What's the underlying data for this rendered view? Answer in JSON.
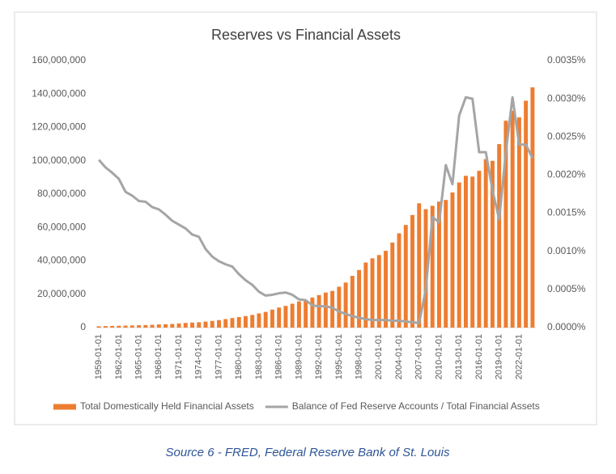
{
  "chart_data": {
    "type": "bar_line",
    "title": "Reserves vs Financial Assets",
    "caption": "Source 6 - FRED, Federal Reserve Bank of St. Louis",
    "categories": [
      "1959-01-01",
      null,
      null,
      "1962-01-01",
      null,
      null,
      "1965-01-01",
      null,
      null,
      "1968-01-01",
      null,
      null,
      "1971-01-01",
      null,
      null,
      "1974-01-01",
      null,
      null,
      "1977-01-01",
      null,
      null,
      "1980-01-01",
      null,
      null,
      "1983-01-01",
      null,
      null,
      "1986-01-01",
      null,
      null,
      "1989-01-01",
      null,
      null,
      "1992-01-01",
      null,
      null,
      "1995-01-01",
      null,
      null,
      "1998-01-01",
      null,
      null,
      "2001-01-01",
      null,
      null,
      "2004-01-01",
      null,
      null,
      "2007-01-01",
      null,
      null,
      "2010-01-01",
      null,
      null,
      "2013-01-01",
      null,
      null,
      "2016-01-01",
      null,
      null,
      "2019-01-01",
      null,
      null,
      "2022-01-01",
      null,
      null
    ],
    "series": [
      {
        "name": "Total Domestically Held Financial Assets",
        "color": "#ed7d31",
        "type": "bar",
        "values": [
          800000,
          900000,
          1000000,
          1100000,
          1200000,
          1300000,
          1400000,
          1500000,
          1700000,
          1900000,
          2000000,
          2200000,
          2500000,
          2800000,
          3000000,
          3200000,
          3600000,
          4000000,
          4500000,
          5100000,
          5700000,
          6300000,
          6900000,
          7600000,
          8500000,
          9400000,
          10800000,
          12000000,
          13000000,
          14300000,
          15700000,
          16500000,
          18000000,
          19500000,
          21000000,
          22000000,
          24500000,
          27000000,
          31000000,
          34500000,
          39000000,
          41500000,
          43500000,
          46000000,
          51000000,
          56500000,
          61500000,
          67500000,
          74500000,
          71000000,
          73000000,
          75500000,
          76500000,
          81000000,
          87000000,
          91000000,
          90500000,
          94000000,
          101000000,
          100000000,
          110000000,
          124000000,
          130000000,
          126000000,
          136000000,
          144000000
        ]
      },
      {
        "name": "Balance of Fed Reserve Accounts / Total Financial Assets",
        "color": "#a5a5a5",
        "type": "line",
        "axis": "y2",
        "values": [
          0.0022,
          0.0021,
          0.00203,
          0.00195,
          0.00178,
          0.00173,
          0.00166,
          0.00165,
          0.00158,
          0.00155,
          0.00148,
          0.0014,
          0.00135,
          0.0013,
          0.00122,
          0.00119,
          0.00103,
          0.00093,
          0.00087,
          0.00083,
          0.0008,
          0.0007,
          0.00062,
          0.00056,
          0.00047,
          0.00042,
          0.00043,
          0.00045,
          0.00046,
          0.00043,
          0.00037,
          0.00036,
          0.00029,
          0.00028,
          0.00028,
          0.00026,
          0.00021,
          0.00018,
          0.00015,
          0.00013,
          0.00011,
          0.0001,
          0.0001,
          0.0001,
          9e-05,
          9e-05,
          8e-05,
          7e-05,
          6e-05,
          0.0005,
          0.00145,
          0.00138,
          0.00213,
          0.00188,
          0.00278,
          0.00302,
          0.003,
          0.0023,
          0.0023,
          0.0018,
          0.00142,
          0.0023,
          0.00302,
          0.0024,
          0.0024,
          0.00222
        ]
      }
    ],
    "ylim": [
      0,
      160000000
    ],
    "yticks": [
      0,
      {
        "value": 20000000,
        "label": "20,000,000"
      },
      {
        "value": 40000000,
        "label": "40,000,000"
      },
      {
        "value": 60000000,
        "label": "60,000,000"
      },
      {
        "value": 80000000,
        "label": "80,000,000"
      },
      {
        "value": 100000000,
        "label": "100,000,000"
      },
      {
        "value": 120000000,
        "label": "120,000,000"
      },
      {
        "value": 140000000,
        "label": "140,000,000"
      },
      {
        "value": 160000000,
        "label": "160,000,000"
      }
    ],
    "y2lim": [
      0,
      0.0035
    ],
    "y2ticks": [
      {
        "value": 0,
        "label": "0.0000%"
      },
      {
        "value": 0.0005,
        "label": "0.0005%"
      },
      {
        "value": 0.001,
        "label": "0.0010%"
      },
      {
        "value": 0.0015,
        "label": "0.0015%"
      },
      {
        "value": 0.002,
        "label": "0.0020%"
      },
      {
        "value": 0.0025,
        "label": "0.0025%"
      },
      {
        "value": 0.003,
        "label": "0.0030%"
      },
      {
        "value": 0.0035,
        "label": "0.0035%"
      }
    ],
    "legend": "bottom"
  }
}
